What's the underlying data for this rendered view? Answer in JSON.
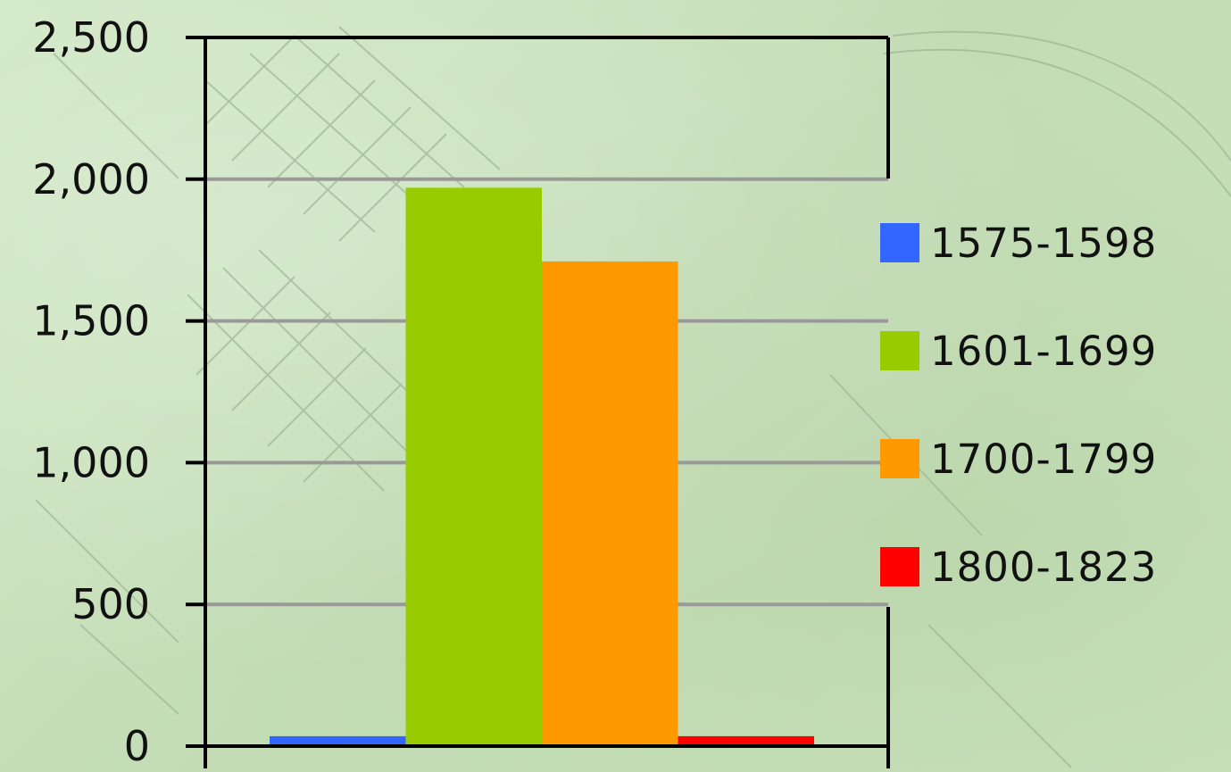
{
  "chart_data": {
    "type": "bar",
    "categories": [
      ""
    ],
    "series": [
      {
        "name": "1575-1598",
        "values": [
          35
        ],
        "color": "#3366ff"
      },
      {
        "name": "1601-1699",
        "values": [
          1970
        ],
        "color": "#99cc00"
      },
      {
        "name": "1700-1799",
        "values": [
          1710
        ],
        "color": "#ff9900"
      },
      {
        "name": "1800-1823",
        "values": [
          35
        ],
        "color": "#ff0000"
      }
    ],
    "ylim": [
      0,
      2500
    ],
    "yticks": [
      "0",
      "500",
      "1,000",
      "1,500",
      "2,000",
      "2,500"
    ],
    "title": "",
    "xlabel": "",
    "ylabel": "",
    "grid": true,
    "legend_position": "right"
  }
}
